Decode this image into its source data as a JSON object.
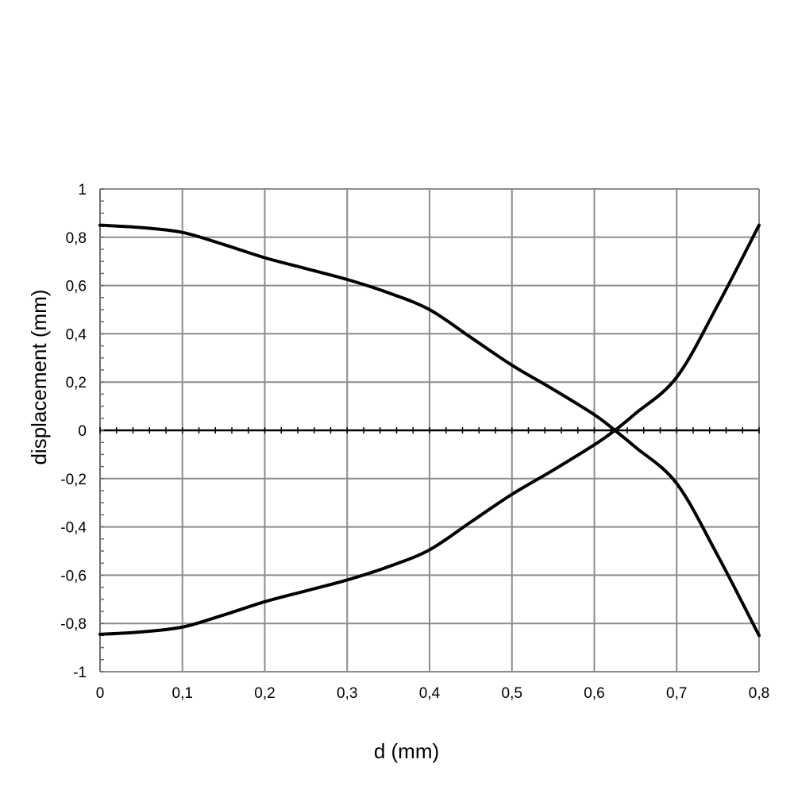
{
  "chart_data": {
    "type": "line",
    "title": "",
    "xlabel": "d (mm)",
    "ylabel": "displacement (mm)",
    "xlim": [
      0,
      0.8
    ],
    "ylim": [
      -1,
      1
    ],
    "x_ticks": [
      0,
      0.1,
      0.2,
      0.3,
      0.4,
      0.5,
      0.6,
      0.7,
      0.8
    ],
    "x_tick_labels": [
      "0",
      "0,1",
      "0,2",
      "0,3",
      "0,4",
      "0,5",
      "0,6",
      "0,7",
      "0,8"
    ],
    "y_ticks": [
      1,
      0.8,
      0.6,
      0.4,
      0.2,
      0,
      -0.2,
      -0.4,
      -0.6,
      -0.8,
      -1
    ],
    "y_tick_labels": [
      "1",
      "0,8",
      "0,6",
      "0,4",
      "0,2",
      "0",
      "-0,2",
      "-0,4",
      "-0,6",
      "-0,8",
      "-1"
    ],
    "grid": true,
    "series": [
      {
        "x": [
          0,
          0.05,
          0.1,
          0.15,
          0.2,
          0.25,
          0.3,
          0.35,
          0.4,
          0.45,
          0.5,
          0.55,
          0.6,
          0.625,
          0.65,
          0.7,
          0.75,
          0.8
        ],
        "y": [
          0.85,
          0.84,
          0.82,
          0.77,
          0.715,
          0.67,
          0.625,
          0.57,
          0.5,
          0.385,
          0.27,
          0.17,
          0.065,
          0.0,
          -0.07,
          -0.22,
          -0.52,
          -0.85
        ]
      },
      {
        "x": [
          0,
          0.05,
          0.1,
          0.15,
          0.2,
          0.25,
          0.3,
          0.35,
          0.4,
          0.45,
          0.5,
          0.55,
          0.6,
          0.625,
          0.65,
          0.7,
          0.75,
          0.8
        ],
        "y": [
          -0.845,
          -0.835,
          -0.815,
          -0.765,
          -0.71,
          -0.665,
          -0.62,
          -0.565,
          -0.495,
          -0.38,
          -0.265,
          -0.165,
          -0.06,
          0.0,
          0.07,
          0.22,
          0.52,
          0.85
        ]
      }
    ]
  }
}
